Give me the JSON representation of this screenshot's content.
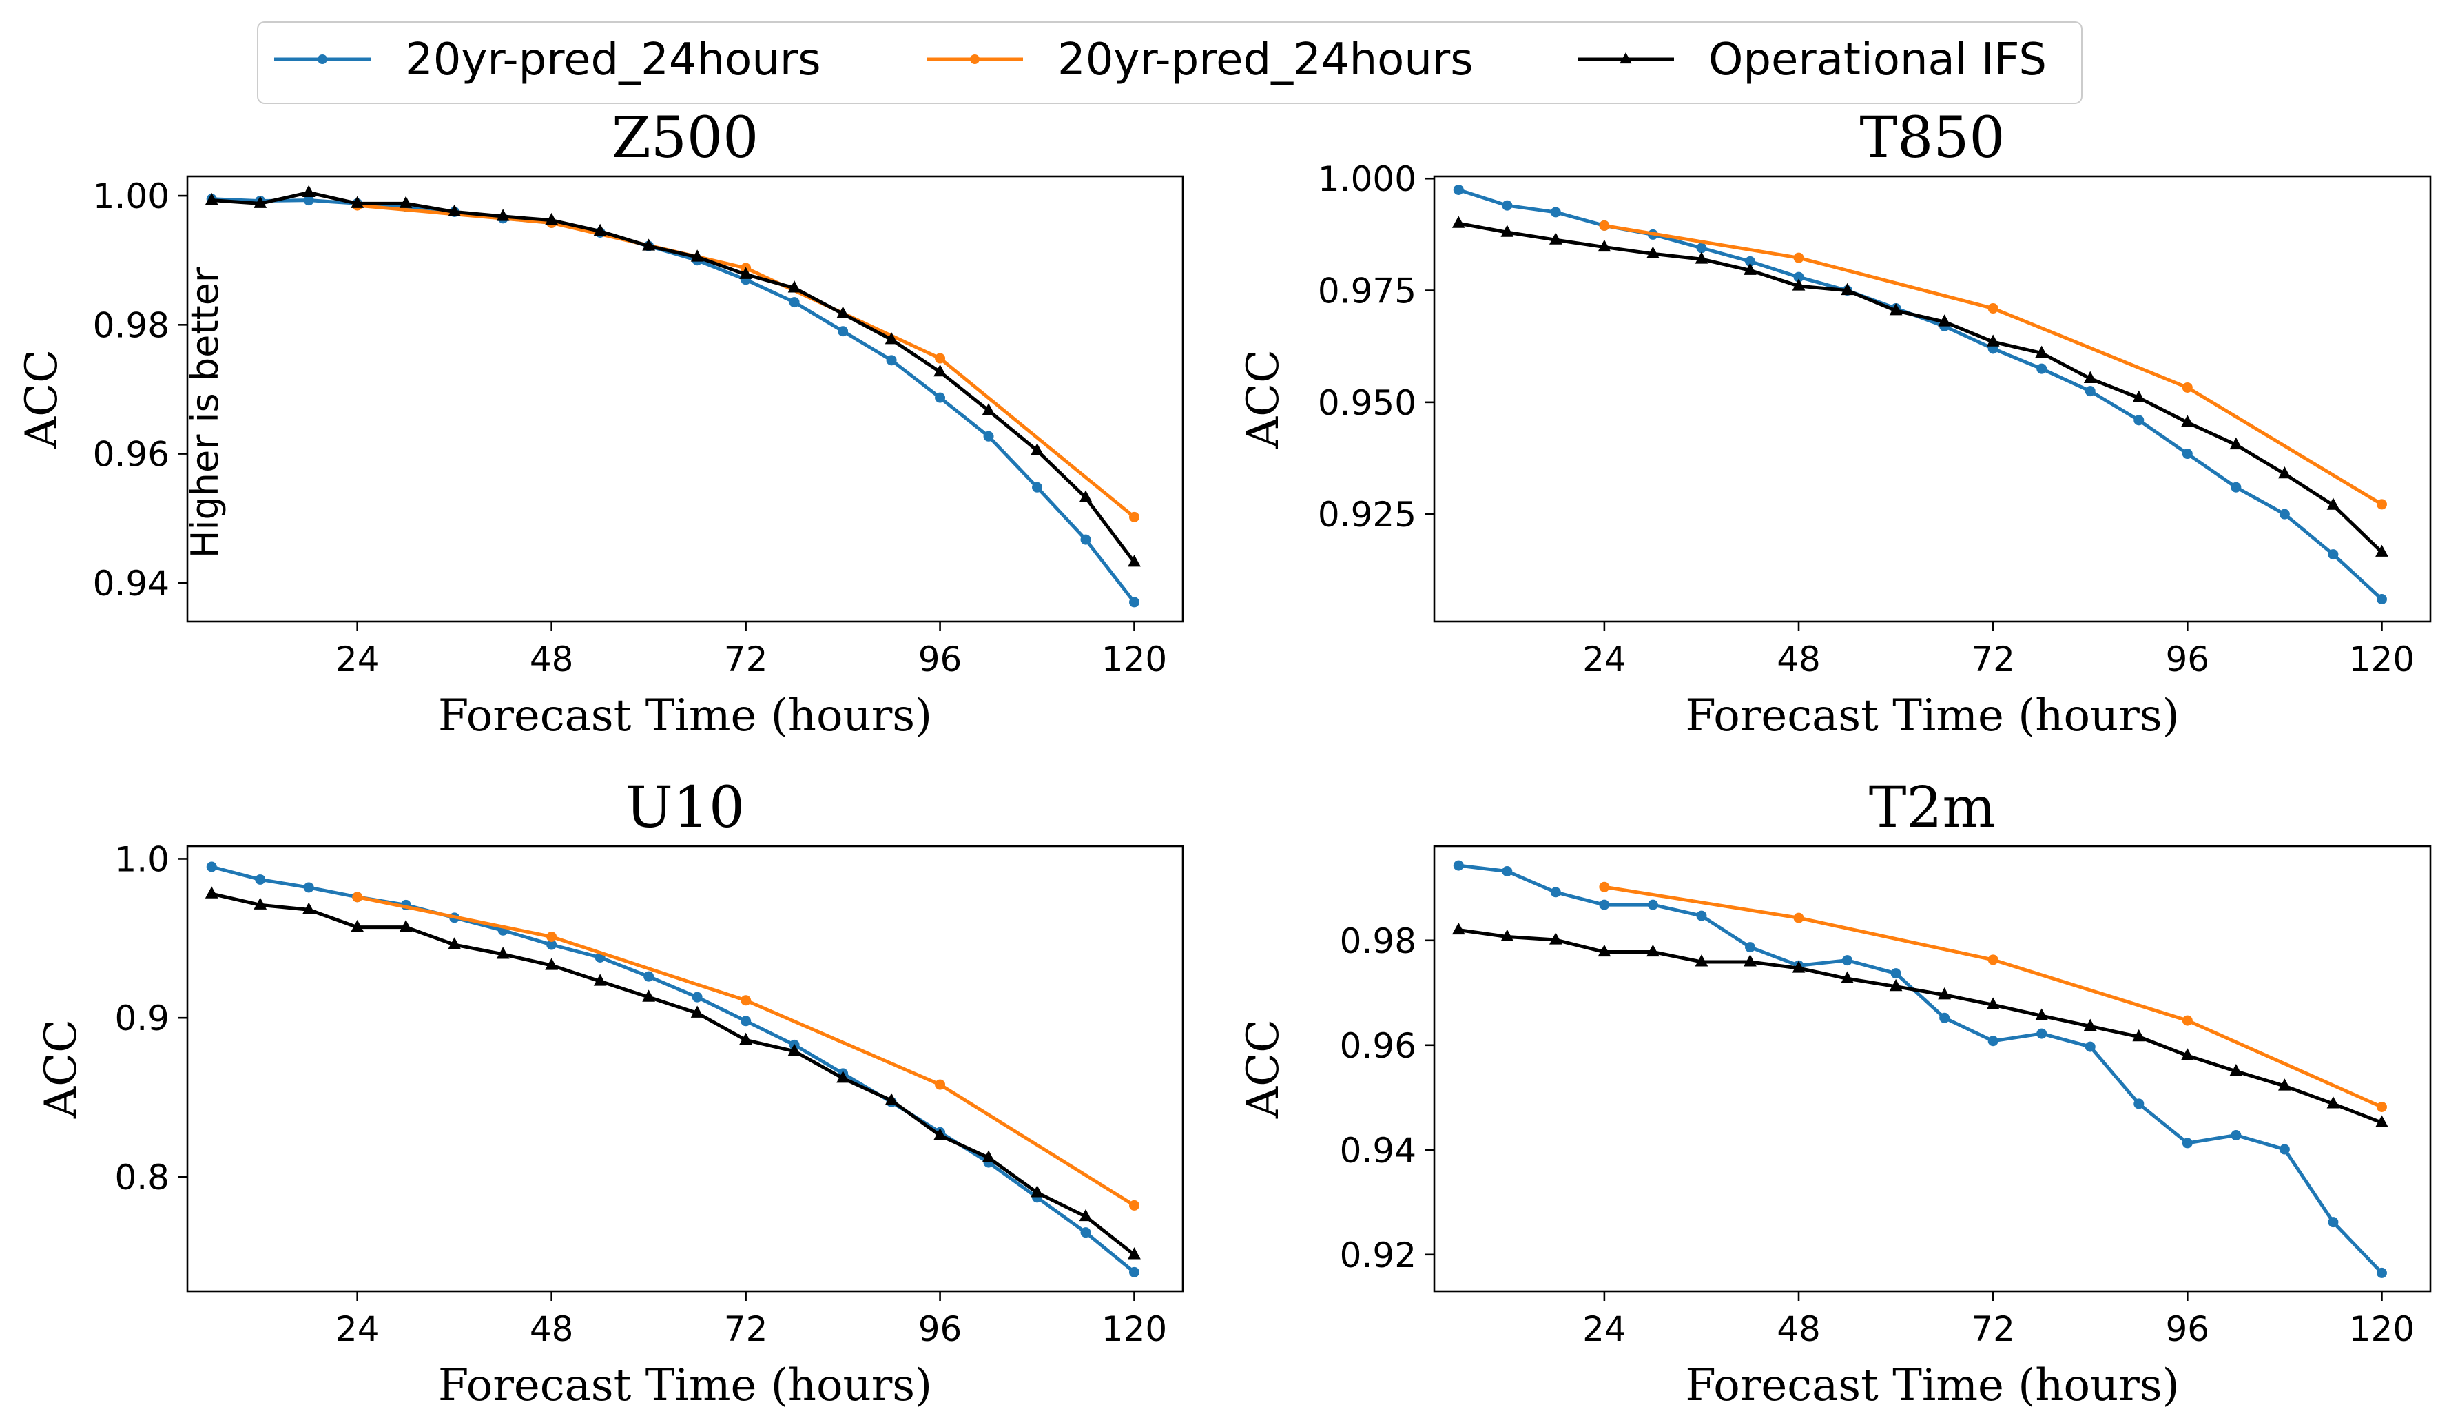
{
  "legend": {
    "location": "top-center",
    "entries": [
      {
        "label": "20yr-pred_24hours",
        "color": "#1f77b4",
        "marker": "circle"
      },
      {
        "label": "20yr-pred_24hours",
        "color": "#ff7f0e",
        "marker": "circle"
      },
      {
        "label": "Operational IFS",
        "color": "#000000",
        "marker": "triangle"
      }
    ]
  },
  "chart_data": [
    {
      "type": "line",
      "title": "Z500",
      "xlabel": "Forecast Time (hours)",
      "ylabel": "ACC",
      "annotation": "Higher is better",
      "xlim": [
        3,
        126
      ],
      "ylim": [
        0.934,
        1.003
      ],
      "xticks": [
        24,
        48,
        72,
        96,
        120
      ],
      "xtick_labels": [
        "24",
        "48",
        "72",
        "96",
        "120"
      ],
      "yticks": [
        0.94,
        0.96,
        0.98,
        1.0
      ],
      "ytick_labels": [
        "0.94",
        "0.96",
        "0.98",
        "1.00"
      ],
      "grid": false,
      "series": [
        {
          "color": "#1f77b4",
          "marker": "circle",
          "x": [
            6,
            12,
            18,
            24,
            30,
            36,
            42,
            48,
            54,
            60,
            66,
            72,
            78,
            84,
            90,
            96,
            102,
            108,
            114,
            120
          ],
          "y": [
            0.9995,
            0.9992,
            0.9993,
            0.9988,
            0.9983,
            0.9975,
            0.9965,
            0.9958,
            0.9943,
            0.9922,
            0.99,
            0.987,
            0.9835,
            0.979,
            0.9745,
            0.9687,
            0.9627,
            0.9548,
            0.9467,
            0.937
          ]
        },
        {
          "color": "#ff7f0e",
          "marker": "circle",
          "x": [
            24,
            48,
            72,
            96,
            120
          ],
          "y": [
            0.9985,
            0.9958,
            0.9888,
            0.9748,
            0.9502
          ]
        },
        {
          "color": "#000000",
          "marker": "triangle",
          "x": [
            6,
            12,
            18,
            24,
            30,
            36,
            42,
            48,
            54,
            60,
            66,
            72,
            78,
            84,
            90,
            96,
            102,
            108,
            114,
            120
          ],
          "y": [
            0.9993,
            0.9988,
            1.0005,
            0.9988,
            0.9988,
            0.9975,
            0.9968,
            0.9962,
            0.9945,
            0.9922,
            0.9905,
            0.9878,
            0.9857,
            0.9817,
            0.9777,
            0.9727,
            0.9667,
            0.9605,
            0.9532,
            0.9432
          ]
        }
      ]
    },
    {
      "type": "line",
      "title": "T850",
      "xlabel": "Forecast Time (hours)",
      "ylabel": "ACC",
      "xlim": [
        3,
        126
      ],
      "ylim": [
        0.901,
        1.0005
      ],
      "xticks": [
        24,
        48,
        72,
        96,
        120
      ],
      "xtick_labels": [
        "24",
        "48",
        "72",
        "96",
        "120"
      ],
      "yticks": [
        0.925,
        0.95,
        0.975,
        1.0
      ],
      "ytick_labels": [
        "0.925",
        "0.950",
        "0.975",
        "1.000"
      ],
      "grid": false,
      "series": [
        {
          "color": "#1f77b4",
          "marker": "circle",
          "x": [
            6,
            12,
            18,
            24,
            30,
            36,
            42,
            48,
            54,
            60,
            66,
            72,
            78,
            84,
            90,
            96,
            102,
            108,
            114,
            120
          ],
          "y": [
            0.9975,
            0.994,
            0.9925,
            0.9895,
            0.9875,
            0.9845,
            0.9815,
            0.978,
            0.975,
            0.971,
            0.967,
            0.962,
            0.9575,
            0.9525,
            0.946,
            0.9385,
            0.931,
            0.925,
            0.916,
            0.906
          ]
        },
        {
          "color": "#ff7f0e",
          "marker": "circle",
          "x": [
            24,
            48,
            72,
            96,
            120
          ],
          "y": [
            0.9895,
            0.9823,
            0.971,
            0.9533,
            0.9272
          ]
        },
        {
          "color": "#000000",
          "marker": "triangle",
          "x": [
            6,
            12,
            18,
            24,
            30,
            36,
            42,
            48,
            54,
            60,
            66,
            72,
            78,
            84,
            90,
            96,
            102,
            108,
            114,
            120
          ],
          "y": [
            0.99,
            0.988,
            0.9863,
            0.9847,
            0.9832,
            0.982,
            0.9795,
            0.976,
            0.975,
            0.9705,
            0.968,
            0.9635,
            0.961,
            0.9553,
            0.951,
            0.9455,
            0.9405,
            0.934,
            0.927,
            0.9165
          ]
        }
      ]
    },
    {
      "type": "line",
      "title": "U10",
      "xlabel": "Forecast Time (hours)",
      "ylabel": "ACC",
      "xlim": [
        3,
        126
      ],
      "ylim": [
        0.728,
        1.008
      ],
      "xticks": [
        24,
        48,
        72,
        96,
        120
      ],
      "xtick_labels": [
        "24",
        "48",
        "72",
        "96",
        "120"
      ],
      "yticks": [
        0.8,
        0.9,
        1.0
      ],
      "ytick_labels": [
        "0.8",
        "0.9",
        "1.0"
      ],
      "grid": false,
      "series": [
        {
          "color": "#1f77b4",
          "marker": "circle",
          "x": [
            6,
            12,
            18,
            24,
            30,
            36,
            42,
            48,
            54,
            60,
            66,
            72,
            78,
            84,
            90,
            96,
            102,
            108,
            114,
            120
          ],
          "y": [
            0.995,
            0.987,
            0.982,
            0.976,
            0.971,
            0.963,
            0.955,
            0.946,
            0.938,
            0.926,
            0.913,
            0.898,
            0.883,
            0.865,
            0.847,
            0.828,
            0.809,
            0.787,
            0.765,
            0.74
          ]
        },
        {
          "color": "#ff7f0e",
          "marker": "circle",
          "x": [
            24,
            48,
            72,
            96,
            120
          ],
          "y": [
            0.976,
            0.951,
            0.911,
            0.858,
            0.782
          ]
        },
        {
          "color": "#000000",
          "marker": "triangle",
          "x": [
            6,
            12,
            18,
            24,
            30,
            36,
            42,
            48,
            54,
            60,
            66,
            72,
            78,
            84,
            90,
            96,
            102,
            108,
            114,
            120
          ],
          "y": [
            0.978,
            0.971,
            0.968,
            0.957,
            0.957,
            0.946,
            0.94,
            0.933,
            0.923,
            0.913,
            0.903,
            0.886,
            0.879,
            0.862,
            0.848,
            0.826,
            0.812,
            0.79,
            0.775,
            0.751
          ]
        }
      ]
    },
    {
      "type": "line",
      "title": "T2m",
      "xlabel": "Forecast Time (hours)",
      "ylabel": "ACC",
      "xlim": [
        3,
        126
      ],
      "ylim": [
        0.913,
        0.998
      ],
      "xticks": [
        24,
        48,
        72,
        96,
        120
      ],
      "xtick_labels": [
        "24",
        "48",
        "72",
        "96",
        "120"
      ],
      "yticks": [
        0.92,
        0.94,
        0.96,
        0.98
      ],
      "ytick_labels": [
        "0.92",
        "0.94",
        "0.96",
        "0.98"
      ],
      "grid": false,
      "series": [
        {
          "color": "#1f77b4",
          "marker": "circle",
          "x": [
            6,
            12,
            18,
            24,
            30,
            36,
            42,
            48,
            54,
            60,
            66,
            72,
            78,
            84,
            90,
            96,
            102,
            108,
            114,
            120
          ],
          "y": [
            0.9943,
            0.9932,
            0.9892,
            0.9868,
            0.9868,
            0.9847,
            0.9787,
            0.9752,
            0.9762,
            0.9737,
            0.9652,
            0.9608,
            0.9622,
            0.9597,
            0.9488,
            0.9413,
            0.9428,
            0.9401,
            0.9262,
            0.9165
          ]
        },
        {
          "color": "#ff7f0e",
          "marker": "circle",
          "x": [
            24,
            48,
            72,
            96,
            120
          ],
          "y": [
            0.9902,
            0.9843,
            0.9763,
            0.9647,
            0.9482
          ]
        },
        {
          "color": "#000000",
          "marker": "triangle",
          "x": [
            6,
            12,
            18,
            24,
            30,
            36,
            42,
            48,
            54,
            60,
            66,
            72,
            78,
            84,
            90,
            96,
            102,
            108,
            114,
            120
          ],
          "y": [
            0.982,
            0.9807,
            0.9801,
            0.9778,
            0.9778,
            0.9759,
            0.9759,
            0.9747,
            0.9727,
            0.9712,
            0.9696,
            0.9677,
            0.9656,
            0.9636,
            0.9616,
            0.958,
            0.955,
            0.9522,
            0.9488,
            0.9452
          ]
        }
      ]
    }
  ]
}
